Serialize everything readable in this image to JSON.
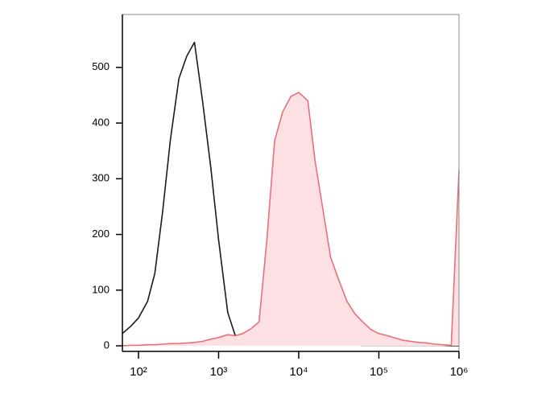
{
  "chart_data": {
    "type": "line",
    "xscale": "log",
    "frame": true,
    "x": [
      63,
      80,
      100,
      130,
      160,
      200,
      250,
      320,
      400,
      500,
      630,
      800,
      1000,
      1300,
      1600,
      2000,
      2500,
      3200,
      4000,
      5000,
      6300,
      8000,
      10000,
      13000,
      16000,
      20000,
      25000,
      32000,
      40000,
      50000,
      63000,
      80000,
      100000,
      130000,
      160000,
      200000,
      250000,
      320000,
      400000,
      500000,
      630000,
      800000,
      1000000
    ],
    "series": [
      {
        "color": "#1a1a1a",
        "fill": null,
        "values": [
          22,
          35,
          50,
          80,
          130,
          240,
          370,
          480,
          520,
          545,
          440,
          320,
          190,
          60,
          20,
          10,
          8,
          6,
          5,
          5,
          4,
          4,
          3,
          3,
          3,
          2,
          2,
          2,
          2,
          2,
          1,
          1,
          1,
          1,
          1,
          1,
          1,
          1,
          1,
          1,
          1,
          0,
          0
        ]
      },
      {
        "color": "#e8707a",
        "fill": "#fde0e3",
        "values": [
          0,
          1,
          1,
          2,
          2,
          3,
          4,
          4,
          5,
          6,
          8,
          12,
          15,
          20,
          18,
          22,
          30,
          43,
          190,
          368,
          420,
          448,
          455,
          440,
          332,
          246,
          159,
          116,
          80,
          58,
          43,
          29,
          22,
          18,
          14,
          10,
          8,
          6,
          5,
          3,
          2,
          1,
          315
        ]
      }
    ],
    "xlim": [
      63,
      1000000
    ],
    "xticks": [
      {
        "value": 100,
        "label": "10²"
      },
      {
        "value": 1000,
        "label": "10³"
      },
      {
        "value": 10000,
        "label": "10⁴"
      },
      {
        "value": 100000,
        "label": "10⁵"
      },
      {
        "value": 1000000,
        "label": "10⁶"
      }
    ],
    "ylim": [
      -10,
      595
    ],
    "yticks": [
      0,
      100,
      200,
      300,
      400,
      500
    ]
  }
}
